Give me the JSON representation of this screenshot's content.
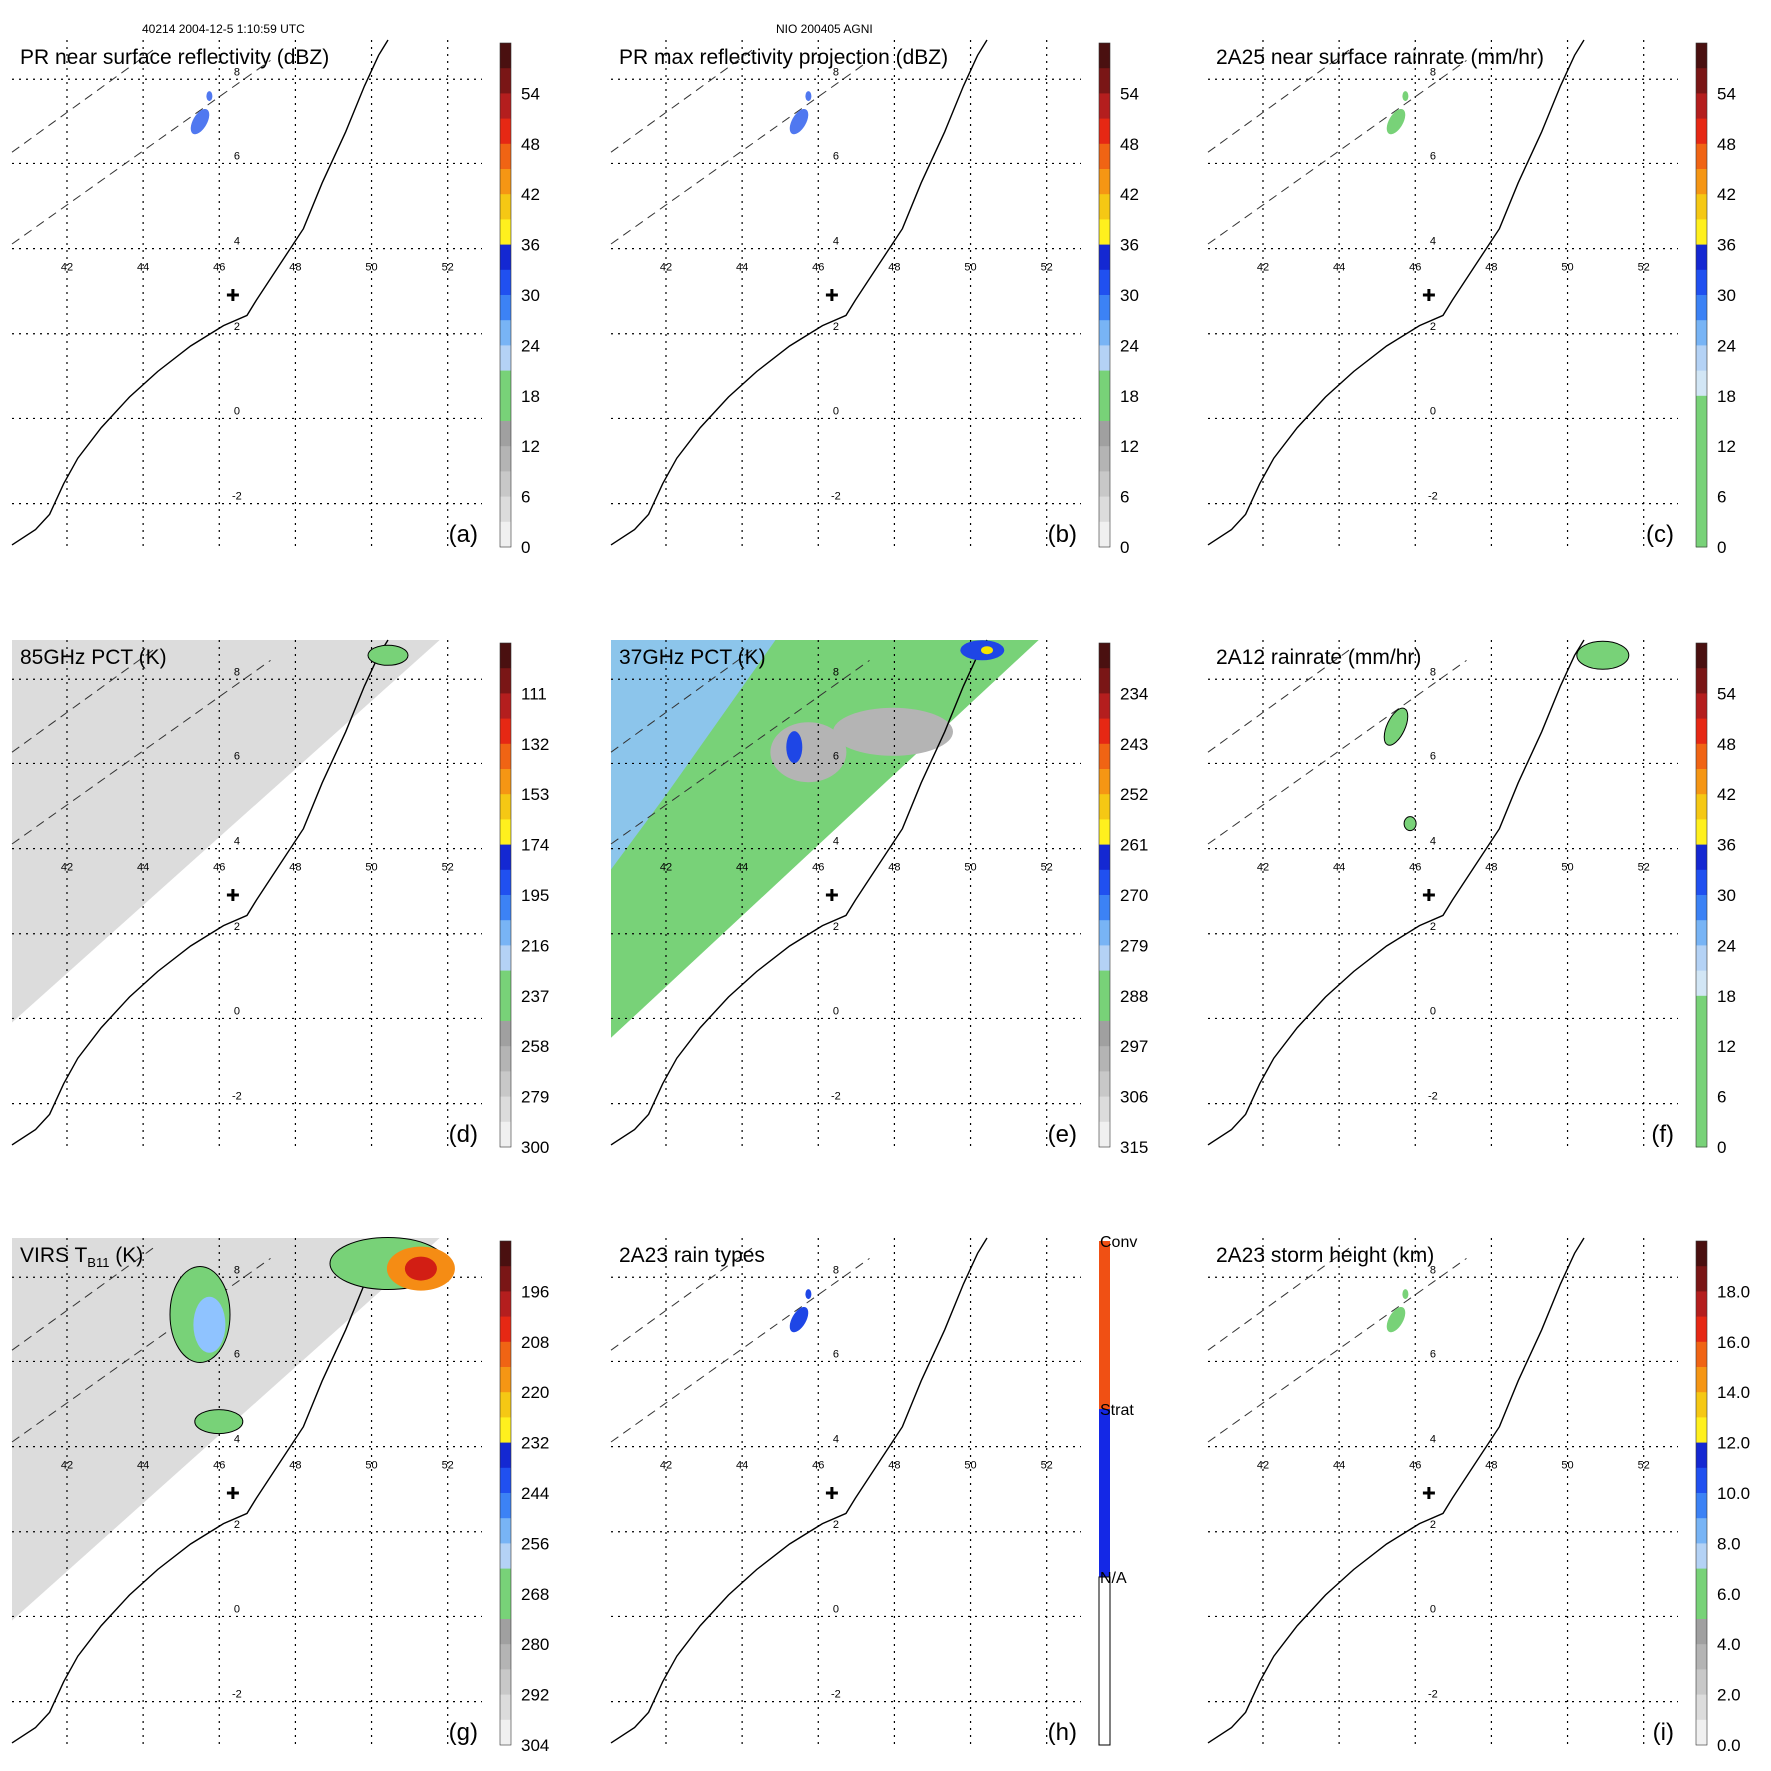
{
  "header": {
    "left": "40214 2004-12-5 1:10:59 UTC",
    "center": "NIO 200405 AGNI"
  },
  "lon_labels": [
    "42",
    "44",
    "46",
    "48",
    "50",
    "52"
  ],
  "lat_labels": [
    "8",
    "6",
    "4",
    "2",
    "0",
    "-2"
  ],
  "colors": {
    "coast": "#000000",
    "grid": "#000000",
    "gray_field": "#d0d0d0",
    "green": "#78d278",
    "lightblue": "#8fc3ff",
    "blue": "#1e46e6",
    "yellow": "#f5e600",
    "orange": "#f58c14",
    "red": "#d21e14"
  },
  "panels": [
    {
      "id": "a",
      "title": "PR near surface reflectivity (dBZ)",
      "letter": "(a)",
      "field": "none",
      "colorbar": {
        "labels": [
          "54",
          "48",
          "42",
          "36",
          "30",
          "24",
          "18",
          "12",
          "6",
          "0"
        ],
        "bands": [
          "#4a1010",
          "#7a1616",
          "#b41e1e",
          "#e62814",
          "#f06414",
          "#f59614",
          "#f5c814",
          "#fff01e",
          "#1428d2",
          "#2050f0",
          "#3c82f5",
          "#78b4f5",
          "#b4d2f5",
          "#78d278",
          "#78d278",
          "#a0a0a0",
          "#b4b4b4",
          "#c8c8c8",
          "#dcdcdc",
          "#f0f0f0"
        ]
      }
    },
    {
      "id": "b",
      "title": "PR max reflectivity projection (dBZ)",
      "letter": "(b)",
      "field": "none",
      "colorbar": {
        "labels": [
          "54",
          "48",
          "42",
          "36",
          "30",
          "24",
          "18",
          "12",
          "6",
          "0"
        ],
        "bands": [
          "#4a1010",
          "#7a1616",
          "#b41e1e",
          "#e62814",
          "#f06414",
          "#f59614",
          "#f5c814",
          "#fff01e",
          "#1428d2",
          "#2050f0",
          "#3c82f5",
          "#78b4f5",
          "#b4d2f5",
          "#78d278",
          "#78d278",
          "#a0a0a0",
          "#b4b4b4",
          "#c8c8c8",
          "#dcdcdc",
          "#f0f0f0"
        ]
      }
    },
    {
      "id": "c",
      "title": "2A25 near surface rainrate (mm/hr)",
      "letter": "(c)",
      "field": "none",
      "colorbar": {
        "labels": [
          "54",
          "48",
          "42",
          "36",
          "30",
          "24",
          "18",
          "12",
          "6",
          "0"
        ],
        "bands": [
          "#4a1010",
          "#7a1616",
          "#b41e1e",
          "#e62814",
          "#f06414",
          "#f59614",
          "#f5c814",
          "#fff01e",
          "#1428d2",
          "#2050f0",
          "#3c82f5",
          "#78b4f5",
          "#b4d2f5",
          "#d2e6f5",
          "#78d278",
          "#78d278",
          "#78d278",
          "#78d278",
          "#78d278",
          "#78d278"
        ]
      }
    },
    {
      "id": "d",
      "title": "85GHz PCT (K)",
      "letter": "(d)",
      "field": "gray",
      "colorbar": {
        "labels": [
          "111",
          "132",
          "153",
          "174",
          "195",
          "216",
          "237",
          "258",
          "279",
          "300"
        ],
        "bands": [
          "#4a1010",
          "#7a1616",
          "#b41e1e",
          "#e62814",
          "#f06414",
          "#f59614",
          "#f5c814",
          "#fff01e",
          "#1428d2",
          "#2050f0",
          "#3c82f5",
          "#78b4f5",
          "#b4d2f5",
          "#78d278",
          "#78d278",
          "#a0a0a0",
          "#b4b4b4",
          "#c8c8c8",
          "#dcdcdc",
          "#f0f0f0"
        ]
      }
    },
    {
      "id": "e",
      "title": "37GHz PCT (K)",
      "letter": "(e)",
      "field": "green",
      "colorbar": {
        "labels": [
          "234",
          "243",
          "252",
          "261",
          "270",
          "279",
          "288",
          "297",
          "306",
          "315"
        ],
        "bands": [
          "#4a1010",
          "#7a1616",
          "#b41e1e",
          "#e62814",
          "#f06414",
          "#f59614",
          "#f5c814",
          "#fff01e",
          "#1428d2",
          "#2050f0",
          "#3c82f5",
          "#78b4f5",
          "#b4d2f5",
          "#78d278",
          "#78d278",
          "#a0a0a0",
          "#b4b4b4",
          "#c8c8c8",
          "#dcdcdc",
          "#f0f0f0"
        ]
      }
    },
    {
      "id": "f",
      "title": "2A12 rainrate (mm/hr)",
      "letter": "(f)",
      "field": "none",
      "colorbar": {
        "labels": [
          "54",
          "48",
          "42",
          "36",
          "30",
          "24",
          "18",
          "12",
          "6",
          "0"
        ],
        "bands": [
          "#4a1010",
          "#7a1616",
          "#b41e1e",
          "#e62814",
          "#f06414",
          "#f59614",
          "#f5c814",
          "#fff01e",
          "#1428d2",
          "#2050f0",
          "#3c82f5",
          "#78b4f5",
          "#b4d2f5",
          "#d2e6f5",
          "#78d278",
          "#78d278",
          "#78d278",
          "#78d278",
          "#78d278",
          "#78d278"
        ]
      }
    },
    {
      "id": "g",
      "title": "VIRS T",
      "title_sub": "B11",
      "title_suffix": " (K)",
      "letter": "(g)",
      "field": "gray",
      "colorbar": {
        "labels": [
          "196",
          "208",
          "220",
          "232",
          "244",
          "256",
          "268",
          "280",
          "292",
          "304"
        ],
        "bands": [
          "#4a1010",
          "#7a1616",
          "#b41e1e",
          "#e62814",
          "#f06414",
          "#f59614",
          "#f5c814",
          "#fff01e",
          "#1428d2",
          "#2050f0",
          "#3c82f5",
          "#78b4f5",
          "#b4d2f5",
          "#78d278",
          "#78d278",
          "#a0a0a0",
          "#b4b4b4",
          "#c8c8c8",
          "#dcdcdc",
          "#f0f0f0"
        ]
      }
    },
    {
      "id": "h",
      "title": "2A23 rain types",
      "letter": "(h)",
      "field": "none",
      "colorbar": {
        "labels": [
          "Conv",
          "Strat",
          "N/A"
        ],
        "bands": []
      }
    },
    {
      "id": "i",
      "title": "2A23 storm height (km)",
      "letter": "(i)",
      "field": "none",
      "colorbar": {
        "labels": [
          "18.0",
          "16.0",
          "14.0",
          "12.0",
          "10.0",
          "8.0",
          "6.0",
          "4.0",
          "2.0",
          "0.0"
        ],
        "bands": [
          "#4a1010",
          "#7a1616",
          "#b41e1e",
          "#e62814",
          "#f06414",
          "#f59614",
          "#f5c814",
          "#fff01e",
          "#1428d2",
          "#2050f0",
          "#3c82f5",
          "#78b4f5",
          "#b4d2f5",
          "#78d278",
          "#78d278",
          "#a0a0a0",
          "#b4b4b4",
          "#c8c8c8",
          "#dcdcdc",
          "#f0f0f0"
        ]
      }
    }
  ]
}
